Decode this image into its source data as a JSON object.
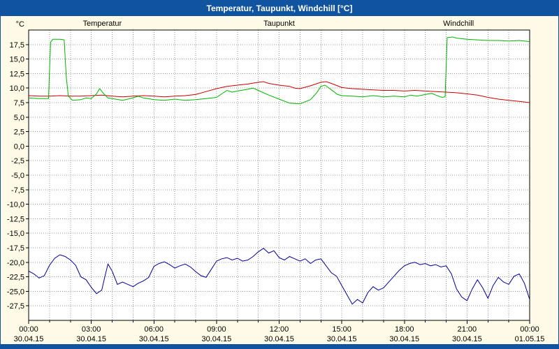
{
  "window": {
    "title": "Temperatur, Taupunkt, Windchill [°C]"
  },
  "colors": {
    "titlebar": "#10539E",
    "titlebar_text": "#FFFFFF",
    "background": "#FFFBE6",
    "plot_background": "#FFFFFF",
    "grid": "#9A9A9A",
    "axis": "#000000",
    "temperatur": "#CC0000",
    "taupunkt": "#000099",
    "windchill": "#00B400"
  },
  "chart_data": {
    "type": "line",
    "title": "Temperatur, Taupunkt, Windchill [°C]",
    "ylabel": "°C",
    "xlabel": "",
    "ylim": [
      -30,
      20
    ],
    "xlim": [
      0,
      24
    ],
    "grid": true,
    "legend_position": "top",
    "legend": [
      {
        "label": "Temperatur",
        "color": "#CC0000"
      },
      {
        "label": "Taupunkt",
        "color": "#000099"
      },
      {
        "label": "Windchill",
        "color": "#00B400"
      }
    ],
    "y_ticks": [
      {
        "v": 17.5,
        "label": "17,5"
      },
      {
        "v": 15.0,
        "label": "15,0"
      },
      {
        "v": 12.5,
        "label": "12,5"
      },
      {
        "v": 10.0,
        "label": "10,0"
      },
      {
        "v": 7.5,
        "label": "7,5"
      },
      {
        "v": 5.0,
        "label": "5,0"
      },
      {
        "v": 2.5,
        "label": "2,5"
      },
      {
        "v": 0.0,
        "label": "0,0"
      },
      {
        "v": -2.5,
        "label": "-2,5"
      },
      {
        "v": -5.0,
        "label": "-5,0"
      },
      {
        "v": -7.5,
        "label": "-7,5"
      },
      {
        "v": -10.0,
        "label": "-10,0"
      },
      {
        "v": -12.5,
        "label": "-12,5"
      },
      {
        "v": -15.0,
        "label": "-15,0"
      },
      {
        "v": -17.5,
        "label": "-17,5"
      },
      {
        "v": -20.0,
        "label": "-20,0"
      },
      {
        "v": -22.5,
        "label": "-22,5"
      },
      {
        "v": -25.0,
        "label": "-25,0"
      },
      {
        "v": -27.5,
        "label": "-27,5"
      }
    ],
    "x_ticks": [
      {
        "h": 0,
        "time": "00:00",
        "date": "30.04.15"
      },
      {
        "h": 3,
        "time": "03:00",
        "date": "30.04.15"
      },
      {
        "h": 6,
        "time": "06:00",
        "date": "30.04.15"
      },
      {
        "h": 9,
        "time": "09:00",
        "date": "30.04.15"
      },
      {
        "h": 12,
        "time": "12:00",
        "date": "30.04.15"
      },
      {
        "h": 15,
        "time": "15:00",
        "date": "30.04.15"
      },
      {
        "h": 18,
        "time": "18:00",
        "date": "30.04.15"
      },
      {
        "h": 21,
        "time": "21:00",
        "date": "30.04.15"
      },
      {
        "h": 24,
        "time": "00:00",
        "date": "01.05.15"
      }
    ],
    "minor_x_step_hours": 1,
    "series": [
      {
        "name": "Temperatur",
        "color": "#CC0000",
        "points": [
          [
            0,
            8.7
          ],
          [
            0.5,
            8.6
          ],
          [
            1,
            8.6
          ],
          [
            1.5,
            8.7
          ],
          [
            2,
            8.6
          ],
          [
            2.5,
            8.6
          ],
          [
            3,
            8.7
          ],
          [
            3.5,
            8.8
          ],
          [
            4,
            8.6
          ],
          [
            4.5,
            8.5
          ],
          [
            5,
            8.6
          ],
          [
            5.5,
            8.7
          ],
          [
            6,
            8.6
          ],
          [
            6.5,
            8.5
          ],
          [
            7,
            8.6
          ],
          [
            7.5,
            8.7
          ],
          [
            8,
            8.9
          ],
          [
            8.5,
            9.4
          ],
          [
            9,
            9.9
          ],
          [
            9.5,
            10.3
          ],
          [
            10,
            10.5
          ],
          [
            10.5,
            10.7
          ],
          [
            11,
            11.0
          ],
          [
            11.25,
            11.1
          ],
          [
            11.5,
            10.8
          ],
          [
            12,
            10.5
          ],
          [
            12.5,
            10.3
          ],
          [
            12.75,
            10.0
          ],
          [
            13,
            9.9
          ],
          [
            13.5,
            10.4
          ],
          [
            14,
            11.0
          ],
          [
            14.25,
            11.1
          ],
          [
            14.5,
            10.8
          ],
          [
            15,
            10.1
          ],
          [
            15.5,
            9.9
          ],
          [
            16,
            9.8
          ],
          [
            16.5,
            9.7
          ],
          [
            17,
            9.6
          ],
          [
            17.5,
            9.6
          ],
          [
            18,
            9.5
          ],
          [
            18.5,
            9.6
          ],
          [
            19,
            9.5
          ],
          [
            19.5,
            9.4
          ],
          [
            20,
            9.3
          ],
          [
            20.5,
            9.2
          ],
          [
            21,
            9.0
          ],
          [
            21.5,
            8.8
          ],
          [
            22,
            8.4
          ],
          [
            22.5,
            8.1
          ],
          [
            23,
            7.9
          ],
          [
            23.5,
            7.7
          ],
          [
            24,
            7.5
          ]
        ]
      },
      {
        "name": "Taupunkt",
        "color": "#000099",
        "points": [
          [
            0,
            -21.5
          ],
          [
            0.25,
            -22.0
          ],
          [
            0.5,
            -22.7
          ],
          [
            0.75,
            -22.3
          ],
          [
            1,
            -20.5
          ],
          [
            1.25,
            -19.3
          ],
          [
            1.5,
            -18.7
          ],
          [
            1.75,
            -19.0
          ],
          [
            2,
            -19.6
          ],
          [
            2.25,
            -20.5
          ],
          [
            2.5,
            -22.5
          ],
          [
            2.75,
            -23.0
          ],
          [
            3,
            -24.3
          ],
          [
            3.25,
            -25.4
          ],
          [
            3.5,
            -24.8
          ],
          [
            3.65,
            -22.5
          ],
          [
            3.8,
            -20.3
          ],
          [
            4,
            -21.5
          ],
          [
            4.25,
            -23.8
          ],
          [
            4.5,
            -23.4
          ],
          [
            4.75,
            -23.8
          ],
          [
            5,
            -24.2
          ],
          [
            5.25,
            -23.6
          ],
          [
            5.5,
            -23.2
          ],
          [
            5.75,
            -22.6
          ],
          [
            6,
            -20.7
          ],
          [
            6.25,
            -20.2
          ],
          [
            6.5,
            -19.9
          ],
          [
            6.75,
            -20.4
          ],
          [
            7,
            -21.0
          ],
          [
            7.25,
            -20.6
          ],
          [
            7.5,
            -20.3
          ],
          [
            7.75,
            -20.8
          ],
          [
            8,
            -21.6
          ],
          [
            8.25,
            -22.3
          ],
          [
            8.5,
            -22.6
          ],
          [
            8.75,
            -21.2
          ],
          [
            9,
            -19.8
          ],
          [
            9.25,
            -19.4
          ],
          [
            9.5,
            -19.2
          ],
          [
            9.75,
            -19.6
          ],
          [
            10,
            -19.3
          ],
          [
            10.25,
            -19.8
          ],
          [
            10.5,
            -19.6
          ],
          [
            10.75,
            -19.0
          ],
          [
            11,
            -18.2
          ],
          [
            11.25,
            -17.6
          ],
          [
            11.5,
            -18.4
          ],
          [
            11.75,
            -18.0
          ],
          [
            12,
            -19.2
          ],
          [
            12.25,
            -19.6
          ],
          [
            12.5,
            -19.0
          ],
          [
            12.75,
            -19.4
          ],
          [
            13,
            -19.8
          ],
          [
            13.25,
            -19.4
          ],
          [
            13.5,
            -20.2
          ],
          [
            13.75,
            -19.6
          ],
          [
            14,
            -19.4
          ],
          [
            14.25,
            -20.6
          ],
          [
            14.5,
            -21.8
          ],
          [
            14.75,
            -22.4
          ],
          [
            15,
            -24.0
          ],
          [
            15.25,
            -25.6
          ],
          [
            15.5,
            -27.2
          ],
          [
            15.75,
            -26.4
          ],
          [
            16,
            -27.0
          ],
          [
            16.25,
            -25.2
          ],
          [
            16.5,
            -24.2
          ],
          [
            16.75,
            -24.8
          ],
          [
            17,
            -24.4
          ],
          [
            17.25,
            -23.4
          ],
          [
            17.5,
            -22.4
          ],
          [
            17.75,
            -21.4
          ],
          [
            18,
            -20.6
          ],
          [
            18.25,
            -20.2
          ],
          [
            18.5,
            -20.0
          ],
          [
            18.75,
            -20.4
          ],
          [
            19,
            -20.2
          ],
          [
            19.25,
            -20.6
          ],
          [
            19.5,
            -20.4
          ],
          [
            19.75,
            -20.8
          ],
          [
            20,
            -20.6
          ],
          [
            20.25,
            -22.0
          ],
          [
            20.5,
            -24.6
          ],
          [
            20.75,
            -26.0
          ],
          [
            21,
            -26.6
          ],
          [
            21.25,
            -24.6
          ],
          [
            21.5,
            -23.0
          ],
          [
            21.75,
            -24.4
          ],
          [
            22,
            -26.2
          ],
          [
            22.25,
            -24.0
          ],
          [
            22.5,
            -22.6
          ],
          [
            22.75,
            -23.4
          ],
          [
            23,
            -23.8
          ],
          [
            23.25,
            -22.4
          ],
          [
            23.5,
            -22.0
          ],
          [
            23.75,
            -23.6
          ],
          [
            24,
            -26.4
          ]
        ]
      },
      {
        "name": "Windchill",
        "color": "#00B400",
        "points": [
          [
            0,
            8.3
          ],
          [
            0.5,
            8.2
          ],
          [
            0.95,
            8.2
          ],
          [
            1.05,
            17.9
          ],
          [
            1.15,
            18.4
          ],
          [
            1.5,
            18.4
          ],
          [
            1.7,
            18.3
          ],
          [
            1.8,
            12.0
          ],
          [
            1.9,
            8.6
          ],
          [
            2.1,
            7.9
          ],
          [
            2.5,
            8.0
          ],
          [
            2.75,
            8.3
          ],
          [
            3,
            8.2
          ],
          [
            3.25,
            9.0
          ],
          [
            3.4,
            9.9
          ],
          [
            3.6,
            9.0
          ],
          [
            3.8,
            8.3
          ],
          [
            4,
            8.2
          ],
          [
            4.5,
            7.9
          ],
          [
            5,
            8.3
          ],
          [
            5.25,
            8.6
          ],
          [
            5.5,
            8.3
          ],
          [
            6,
            8.0
          ],
          [
            6.5,
            7.9
          ],
          [
            7,
            8.1
          ],
          [
            7.5,
            7.9
          ],
          [
            8,
            8.0
          ],
          [
            8.5,
            8.2
          ],
          [
            9,
            8.4
          ],
          [
            9.25,
            9.0
          ],
          [
            9.5,
            9.6
          ],
          [
            9.75,
            9.3
          ],
          [
            10,
            9.5
          ],
          [
            10.5,
            9.8
          ],
          [
            10.75,
            10.0
          ],
          [
            11,
            9.6
          ],
          [
            11.5,
            8.8
          ],
          [
            12,
            8.1
          ],
          [
            12.5,
            7.4
          ],
          [
            13,
            7.3
          ],
          [
            13.5,
            8.0
          ],
          [
            13.8,
            9.2
          ],
          [
            14,
            10.3
          ],
          [
            14.2,
            10.5
          ],
          [
            14.5,
            9.7
          ],
          [
            14.8,
            8.9
          ],
          [
            15,
            8.7
          ],
          [
            15.5,
            8.6
          ],
          [
            16,
            8.5
          ],
          [
            16.5,
            8.7
          ],
          [
            17,
            8.5
          ],
          [
            17.5,
            8.6
          ],
          [
            18,
            8.5
          ],
          [
            18.3,
            8.8
          ],
          [
            18.6,
            8.6
          ],
          [
            19,
            8.9
          ],
          [
            19.3,
            9.1
          ],
          [
            19.5,
            8.8
          ],
          [
            19.8,
            8.4
          ],
          [
            19.95,
            8.5
          ],
          [
            20.05,
            18.7
          ],
          [
            20.3,
            18.8
          ],
          [
            20.5,
            18.6
          ],
          [
            21,
            18.4
          ],
          [
            21.5,
            18.3
          ],
          [
            22,
            18.2
          ],
          [
            22.5,
            18.2
          ],
          [
            23,
            18.1
          ],
          [
            23.5,
            18.2
          ],
          [
            24,
            18.0
          ]
        ]
      }
    ]
  }
}
